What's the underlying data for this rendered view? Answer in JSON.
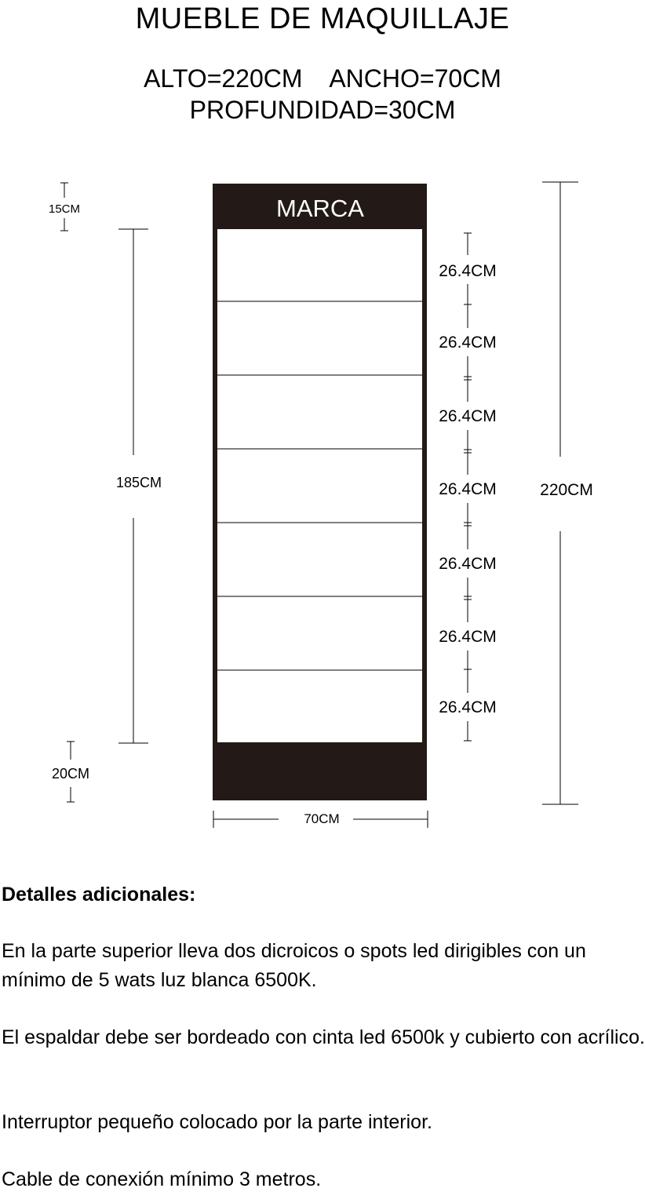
{
  "title": "MUEBLE DE MAQUILLAJE",
  "dimensions": {
    "line1": "ALTO=220CM    ANCHO=70CM",
    "line2": "PROFUNDIDAD=30CM"
  },
  "drawing": {
    "brand_label": "MARCA",
    "top_band": "15CM",
    "display_height": "185CM",
    "base_height": "20CM",
    "total_height": "220CM",
    "width": "70CM",
    "shelf_spacings": [
      "26.4CM",
      "26.4CM",
      "26.4CM",
      "26.4CM",
      "26.4CM",
      "26.4CM",
      "26.4CM"
    ],
    "colors": {
      "panel": "#231916",
      "line": "#000000"
    }
  },
  "notes": {
    "heading": "Detalles adicionales:",
    "paragraphs": [
      "En la parte superior lleva dos dicroicos o spots led dirigibles con un mínimo de 5 wats luz blanca 6500K.",
      "El espaldar debe ser bordeado con cinta led 6500k y cubierto con acrílico.",
      "Interruptor pequeño colocado por la parte interior.",
      "Cable de conexión mínimo 3 metros."
    ]
  }
}
